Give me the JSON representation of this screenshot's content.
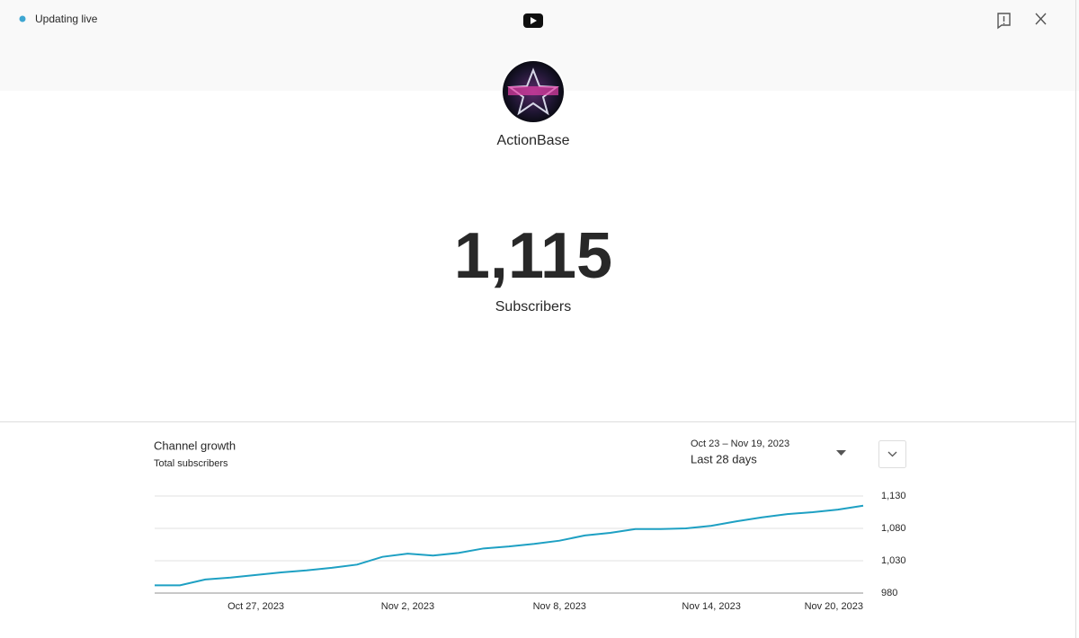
{
  "status": "Updating live",
  "channel": {
    "name": "ActionBase"
  },
  "subscribers": {
    "count": "1,115",
    "label": "Subscribers"
  },
  "controls": {
    "date_range": "Oct 23 – Nov 19, 2023",
    "period": "Last 28 days"
  },
  "chart_data": {
    "type": "line",
    "title": "Channel growth",
    "subtitle": "Total subscribers",
    "x": [
      "2023-10-23",
      "2023-10-24",
      "2023-10-25",
      "2023-10-26",
      "2023-10-27",
      "2023-10-28",
      "2023-10-29",
      "2023-10-30",
      "2023-10-31",
      "2023-11-01",
      "2023-11-02",
      "2023-11-03",
      "2023-11-04",
      "2023-11-05",
      "2023-11-06",
      "2023-11-07",
      "2023-11-08",
      "2023-11-09",
      "2023-11-10",
      "2023-11-11",
      "2023-11-12",
      "2023-11-13",
      "2023-11-14",
      "2023-11-15",
      "2023-11-16",
      "2023-11-17",
      "2023-11-18",
      "2023-11-19",
      "2023-11-20"
    ],
    "series": [
      {
        "color": "#1ea0c3",
        "values": [
          992,
          992,
          1001,
          1004,
          1008,
          1012,
          1015,
          1019,
          1024,
          1036,
          1041,
          1038,
          1042,
          1049,
          1052,
          1056,
          1061,
          1069,
          1073,
          1079,
          1079,
          1080,
          1084,
          1091,
          1097,
          1102,
          1105,
          1109,
          1115
        ]
      }
    ],
    "xlim": [
      "2023-10-23",
      "2023-11-20"
    ],
    "xticks": [
      {
        "value": "2023-10-27",
        "label": "Oct 27, 2023"
      },
      {
        "value": "2023-11-02",
        "label": "Nov 2, 2023"
      },
      {
        "value": "2023-11-08",
        "label": "Nov 8, 2023"
      },
      {
        "value": "2023-11-14",
        "label": "Nov 14, 2023"
      },
      {
        "value": "2023-11-20",
        "label": "Nov 20, 2023"
      }
    ],
    "ylim": [
      980,
      1130
    ],
    "yticks": [
      980,
      {
        "value": 1030,
        "label": "1,030"
      },
      {
        "value": 1080,
        "label": "1,080"
      },
      {
        "value": 1130,
        "label": "1,130"
      }
    ],
    "grid": true
  }
}
